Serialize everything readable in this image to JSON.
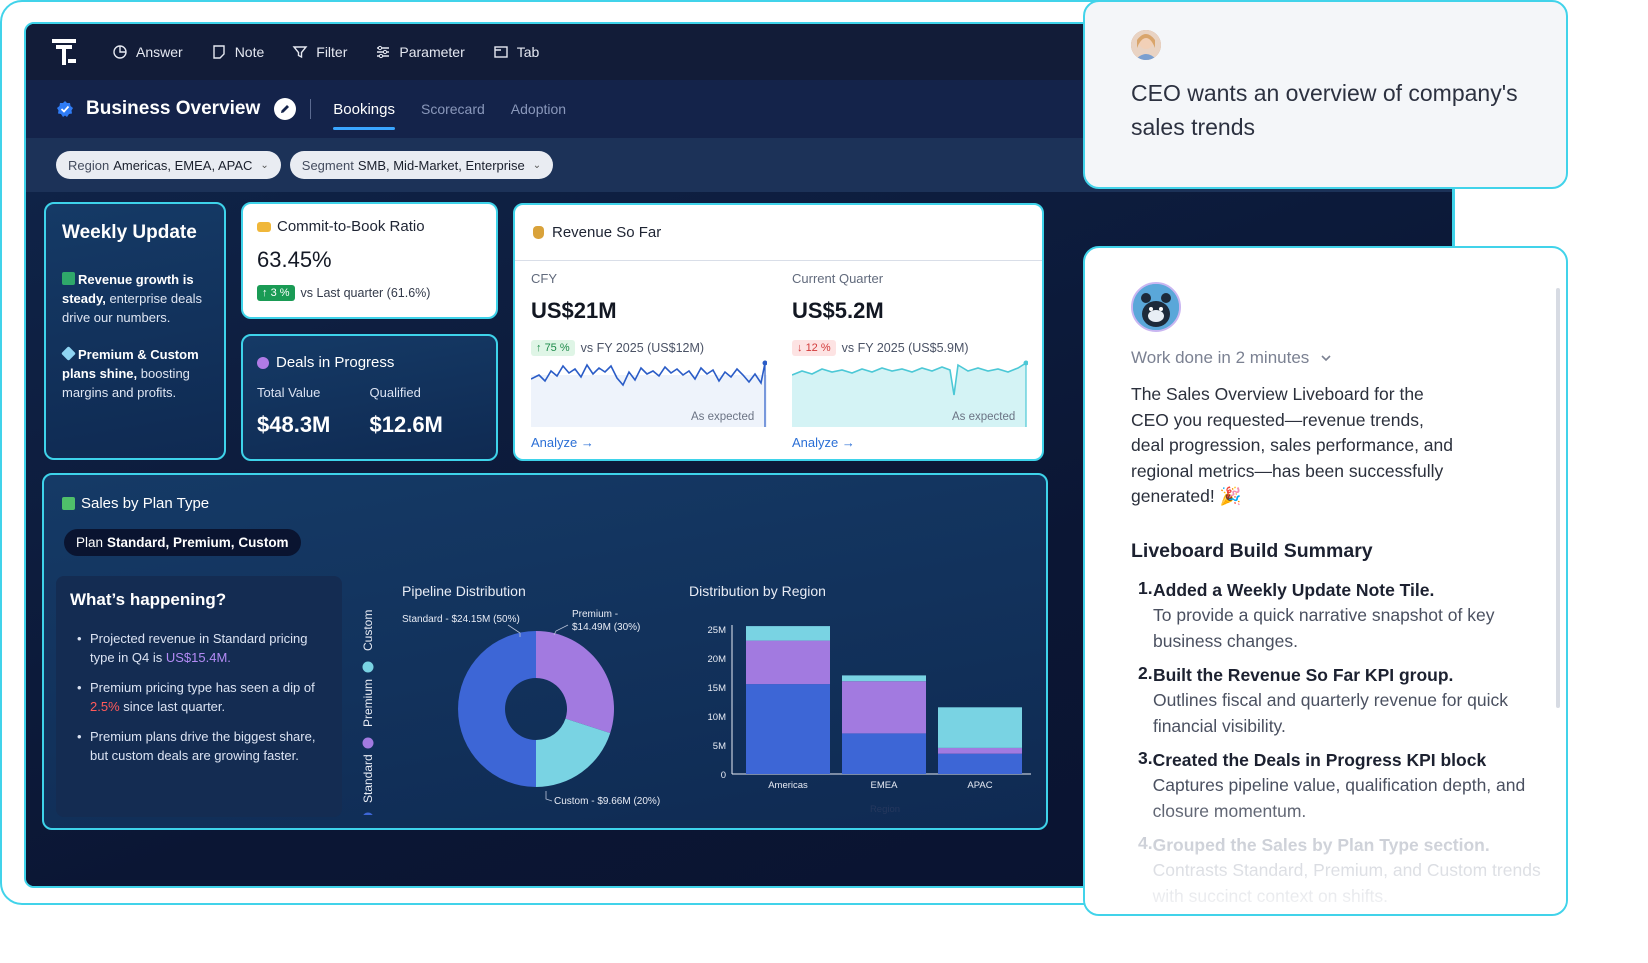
{
  "toolbar": {
    "items": [
      {
        "label": "Answer",
        "icon": "pie-chart-icon"
      },
      {
        "label": "Note",
        "icon": "note-icon"
      },
      {
        "label": "Filter",
        "icon": "filter-icon"
      },
      {
        "label": "Parameter",
        "icon": "sliders-icon"
      },
      {
        "label": "Tab",
        "icon": "tab-icon"
      }
    ]
  },
  "header": {
    "title": "Business Overview",
    "tabs": [
      {
        "label": "Bookings",
        "active": true
      },
      {
        "label": "Scorecard",
        "active": false
      },
      {
        "label": "Adoption",
        "active": false
      }
    ]
  },
  "filters": [
    {
      "name": "Region",
      "value": "Americas, EMEA, APAC"
    },
    {
      "name": "Segment",
      "value": "SMB, Mid-Market, Enterprise"
    }
  ],
  "weekly_update": {
    "title": "Weekly Update",
    "p1_bold": "Revenue growth is steady,",
    "p1_rest": " enterprise deals drive our numbers.",
    "p2_bold": "Premium & Custom plans shine,",
    "p2_rest": " boosting margins and profits."
  },
  "commit_to_book": {
    "title": "Commit-to-Book Ratio",
    "value": "63.45%",
    "change": "3 %",
    "comparison": "vs Last quarter (61.6%)"
  },
  "deals_in_progress": {
    "title": "Deals in Progress",
    "total_label": "Total Value",
    "total_value": "$48.3M",
    "qualified_label": "Qualified",
    "qualified_value": "$12.6M"
  },
  "revenue_so_far": {
    "title": "Revenue So Far",
    "cfy": {
      "label": "CFY",
      "value": "US$21M",
      "change": "75 %",
      "comparison": "vs FY 2025 (US$12M)",
      "note": "As expected",
      "link": "Analyze →"
    },
    "quarter": {
      "label": "Current Quarter",
      "value": "US$5.2M",
      "change": "12 %",
      "comparison": "vs FY 2025 (US$5.9M)",
      "note": "As expected",
      "link": "Analyze →"
    }
  },
  "sales_by_plan": {
    "title": "Sales by Plan Type",
    "chip_label": "Plan",
    "chip_value": "Standard, Premium, Custom",
    "whats_title": "What’s happening?",
    "b1_pre": "Projected revenue in Standard pricing type in Q4 is ",
    "b1_hl": "US$15.4M.",
    "b2_pre": "Premium pricing type has seen a dip of ",
    "b2_hl": "2.5%",
    "b2_post": " since last quarter.",
    "b3": "Premium plans drive the biggest share, but custom deals are growing faster.",
    "legend": [
      "Custom",
      "Premium",
      "Standard"
    ],
    "pipeline_title": "Pipeline Distribution",
    "region_title": "Distribution by Region",
    "region_axis_label": "Region"
  },
  "colors": {
    "standard": "#3d66d6",
    "premium": "#a27ae0",
    "custom": "#79d3e3",
    "accent": "#3ed3ea"
  },
  "chart_data": [
    {
      "type": "pie",
      "title": "Pipeline Distribution",
      "slices": [
        {
          "name": "Standard",
          "label": "Standard - $24.15M (50%)",
          "value": 50
        },
        {
          "name": "Premium",
          "label": "Premium - $14.49M (30%)",
          "value": 30
        },
        {
          "name": "Custom",
          "label": "Custom - $9.66M (20%)",
          "value": 20
        }
      ]
    },
    {
      "type": "bar",
      "title": "Distribution by Region",
      "stacked": true,
      "categories": [
        "Americas",
        "EMEA",
        "APAC"
      ],
      "xlabel": "Region",
      "ylim": [
        0,
        25
      ],
      "y_ticks": [
        "0",
        "5M",
        "10M",
        "15M",
        "20M",
        "25M"
      ],
      "series": [
        {
          "name": "Standard",
          "values": [
            15.5,
            7,
            3.5
          ]
        },
        {
          "name": "Premium",
          "values": [
            7.5,
            9,
            1
          ]
        },
        {
          "name": "Custom",
          "values": [
            2.5,
            1,
            7
          ]
        }
      ]
    }
  ],
  "chat": {
    "user_message": "CEO wants an overview of company's sales trends",
    "work_done": "Work done in 2 minutes",
    "summary": "The Sales Overview Liveboard for the CEO you requested—revenue trends, deal progression, sales performance, and regional metrics—has been successfully generated! 🎉",
    "build_title": "Liveboard Build Summary",
    "steps": [
      {
        "n": "1.",
        "title": "Added a Weekly Update Note Tile.",
        "desc": "To provide a quick narrative snapshot of key business changes."
      },
      {
        "n": "2.",
        "title": "Built the Revenue So Far KPI group.",
        "desc": "Outlines fiscal and quarterly revenue for quick financial visibility."
      },
      {
        "n": "3.",
        "title": "Created the Deals in Progress KPI block",
        "desc": "Captures pipeline value, qualification depth, and closure momentum."
      },
      {
        "n": "4.",
        "title": "Grouped the Sales by Plan Type section.",
        "desc": "Contrasts Standard, Premium, and Custom trends with succinct context on shifts."
      }
    ]
  }
}
